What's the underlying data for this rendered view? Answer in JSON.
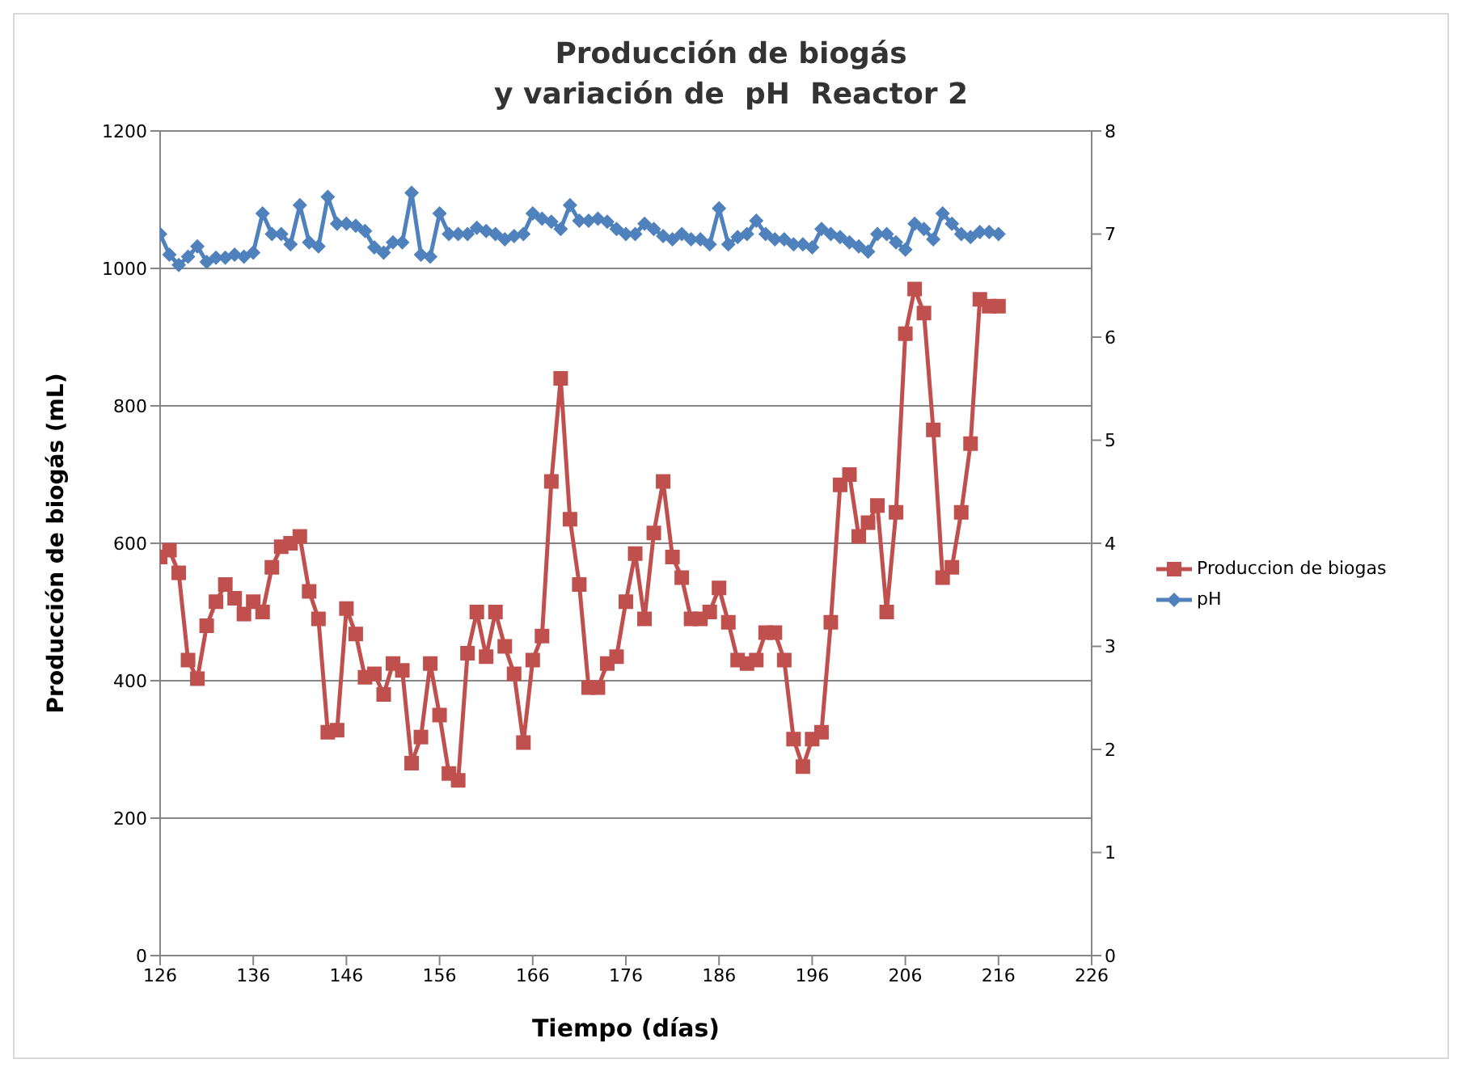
{
  "chart_data": {
    "type": "line",
    "title": "Producción de biogás\ny variación de  pH  Reactor 2",
    "xlabel": "Tiempo (días)",
    "ylabel": "Producción de biogás (mL)",
    "x": [
      126,
      127,
      128,
      129,
      130,
      131,
      132,
      133,
      134,
      135,
      136,
      137,
      138,
      139,
      140,
      141,
      142,
      143,
      144,
      145,
      146,
      147,
      148,
      149,
      150,
      151,
      152,
      153,
      154,
      155,
      156,
      157,
      158,
      159,
      160,
      161,
      162,
      163,
      164,
      165,
      166,
      167,
      168,
      169,
      170,
      171,
      172,
      173,
      174,
      175,
      176,
      177,
      178,
      179,
      180,
      181,
      182,
      183,
      184,
      185,
      186,
      187,
      188,
      189,
      190,
      191,
      192,
      193,
      194,
      195,
      196,
      197,
      198,
      199,
      200,
      201,
      202,
      203,
      204,
      205,
      206,
      207,
      208,
      209,
      210,
      211,
      212,
      213,
      214,
      215,
      216
    ],
    "series": [
      {
        "name": "Produccion de biogas",
        "color": "#c0504d",
        "marker": "square",
        "values": [
          580,
          590,
          557,
          430,
          403,
          480,
          515,
          540,
          520,
          497,
          515,
          500,
          565,
          595,
          600,
          610,
          530,
          490,
          325,
          328,
          505,
          468,
          405,
          410,
          380,
          425,
          415,
          280,
          318,
          425,
          350,
          265,
          255,
          440,
          500,
          435,
          500,
          450,
          410,
          310,
          430,
          465,
          690,
          840,
          635,
          540,
          390,
          390,
          425,
          435,
          515,
          585,
          490,
          615,
          690,
          580,
          550,
          490,
          490,
          500,
          535,
          485,
          430,
          425,
          430,
          470,
          470,
          430,
          315,
          275,
          315,
          325,
          485,
          685,
          700,
          610,
          630,
          655,
          500,
          645,
          905,
          970,
          935,
          765,
          550,
          565,
          645,
          745,
          955,
          945,
          945
        ]
      },
      {
        "name": "pH",
        "color": "#4f81bd",
        "marker": "diamond",
        "axis": "y2",
        "values": [
          7.0,
          6.8,
          6.7,
          6.78,
          6.88,
          6.73,
          6.77,
          6.77,
          6.8,
          6.78,
          6.82,
          7.2,
          7.0,
          7.0,
          6.9,
          7.28,
          6.92,
          6.88,
          7.36,
          7.1,
          7.1,
          7.08,
          7.03,
          6.87,
          6.82,
          6.92,
          6.92,
          7.4,
          6.8,
          6.78,
          7.2,
          7.0,
          7.0,
          7.0,
          7.06,
          7.03,
          7.0,
          6.95,
          6.98,
          7.0,
          7.2,
          7.15,
          7.12,
          7.05,
          7.28,
          7.13,
          7.13,
          7.15,
          7.12,
          7.05,
          7.0,
          7.0,
          7.1,
          7.05,
          6.98,
          6.95,
          7.0,
          6.95,
          6.95,
          6.9,
          7.25,
          6.9,
          6.97,
          7.0,
          7.13,
          7.0,
          6.95,
          6.95,
          6.9,
          6.9,
          6.87,
          7.05,
          7.0,
          6.97,
          6.92,
          6.88,
          6.83,
          7.0,
          7.0,
          6.92,
          6.85,
          7.1,
          7.05,
          6.95,
          7.2,
          7.1,
          7.0,
          6.97,
          7.02,
          7.02,
          7.0
        ]
      }
    ],
    "xlim": [
      126,
      226
    ],
    "xticks": [
      126,
      136,
      146,
      156,
      166,
      176,
      186,
      196,
      206,
      216,
      226
    ],
    "ylim": [
      0,
      1200
    ],
    "yticks": [
      0,
      200,
      400,
      600,
      800,
      1000,
      1200
    ],
    "y2lim": [
      0,
      8
    ],
    "y2ticks": [
      0,
      1,
      2,
      3,
      4,
      5,
      6,
      7,
      8
    ],
    "grid": "y",
    "legend": "right",
    "line_style": "solid"
  }
}
